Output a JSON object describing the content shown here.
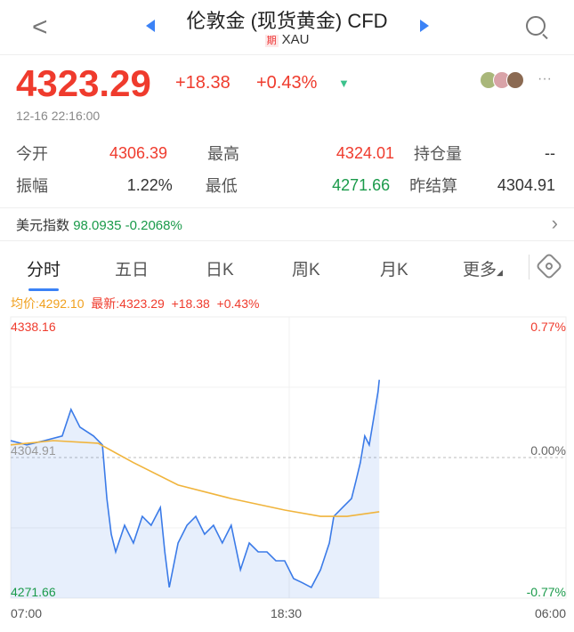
{
  "header": {
    "title": "伦敦金 (现货黄金) CFD",
    "tag": "期",
    "symbol": "XAU"
  },
  "quote": {
    "price": "4323.29",
    "change": "+18.38",
    "change_pct": "+0.43%",
    "time": "12-16 22:16:00"
  },
  "stats": [
    [
      {
        "label": "今开",
        "value": "4306.39",
        "color": "red"
      },
      {
        "label": "最高",
        "value": "4324.01",
        "color": "red"
      },
      {
        "label": "持仓量",
        "value": "--",
        "color": ""
      }
    ],
    [
      {
        "label": "振幅",
        "value": "1.22%",
        "color": ""
      },
      {
        "label": "最低",
        "value": "4271.66",
        "color": "green"
      },
      {
        "label": "昨结算",
        "value": "4304.91",
        "color": ""
      }
    ]
  ],
  "dxy": {
    "label": "美元指数",
    "value": "98.0935",
    "change": "-0.2068%"
  },
  "tabs": [
    "分时",
    "五日",
    "日K",
    "周K",
    "月K",
    "更多"
  ],
  "chart_info": {
    "avg": "均价:4292.10",
    "latest": "最新:4323.29",
    "change": "+18.38",
    "pct": "+0.43%"
  },
  "colors": {
    "up": "#ef3b2d",
    "down": "#1a9a4a",
    "price_line": "#3b7be8",
    "avg_line": "#f0b43c",
    "accent": "#3b82f6"
  },
  "chart_data": {
    "type": "line",
    "ylim": [
      4271.66,
      4338.16
    ],
    "prev_close": 4304.91,
    "y_labels": {
      "top": "4338.16",
      "mid": "4304.91",
      "bottom": "4271.66"
    },
    "pct_labels": {
      "top": "0.77%",
      "mid": "0.00%",
      "bottom": "-0.77%"
    },
    "x_labels": [
      "07:00",
      "18:30",
      "06:00"
    ],
    "x_range": [
      "07:00",
      "06:00"
    ],
    "series": [
      {
        "role": "price",
        "points": [
          [
            "07:00",
            4308.9
          ],
          [
            "07:40",
            4307.9
          ],
          [
            "08:24",
            4308.9
          ],
          [
            "09:08",
            4310.0
          ],
          [
            "09:30",
            4316.3
          ],
          [
            "09:52",
            4312.1
          ],
          [
            "10:26",
            4310.0
          ],
          [
            "10:48",
            4307.9
          ],
          [
            "10:59",
            4295.2
          ],
          [
            "11:10",
            4286.8
          ],
          [
            "11:21",
            4282.6
          ],
          [
            "11:43",
            4288.9
          ],
          [
            "12:05",
            4284.7
          ],
          [
            "12:27",
            4291.0
          ],
          [
            "12:49",
            4288.9
          ],
          [
            "13:12",
            4293.1
          ],
          [
            "13:23",
            4282.6
          ],
          [
            "13:34",
            4274.2
          ],
          [
            "13:56",
            4284.7
          ],
          [
            "14:18",
            4288.9
          ],
          [
            "14:40",
            4291.0
          ],
          [
            "15:02",
            4286.8
          ],
          [
            "15:24",
            4288.9
          ],
          [
            "15:46",
            4284.7
          ],
          [
            "16:08",
            4288.9
          ],
          [
            "16:31",
            4278.4
          ],
          [
            "16:53",
            4284.7
          ],
          [
            "17:15",
            4282.6
          ],
          [
            "17:37",
            4282.6
          ],
          [
            "17:59",
            4280.5
          ],
          [
            "18:21",
            4280.5
          ],
          [
            "18:43",
            4276.3
          ],
          [
            "19:05",
            4275.3
          ],
          [
            "19:27",
            4274.2
          ],
          [
            "19:50",
            4278.4
          ],
          [
            "20:12",
            4284.7
          ],
          [
            "20:23",
            4291.0
          ],
          [
            "20:45",
            4293.1
          ],
          [
            "21:07",
            4295.2
          ],
          [
            "21:18",
            4299.4
          ],
          [
            "21:29",
            4303.7
          ],
          [
            "21:40",
            4310.0
          ],
          [
            "21:51",
            4307.9
          ],
          [
            "22:02",
            4314.2
          ],
          [
            "22:13",
            4320.5
          ],
          [
            "22:16",
            4323.29
          ]
        ]
      },
      {
        "role": "average",
        "points": [
          [
            "07:00",
            4307.9
          ],
          [
            "08:46",
            4308.9
          ],
          [
            "10:37",
            4308.3
          ],
          [
            "12:05",
            4303.7
          ],
          [
            "13:56",
            4298.4
          ],
          [
            "16:08",
            4295.2
          ],
          [
            "18:21",
            4292.5
          ],
          [
            "19:50",
            4291.0
          ],
          [
            "20:56",
            4291.0
          ],
          [
            "22:16",
            4292.1
          ]
        ]
      }
    ]
  }
}
